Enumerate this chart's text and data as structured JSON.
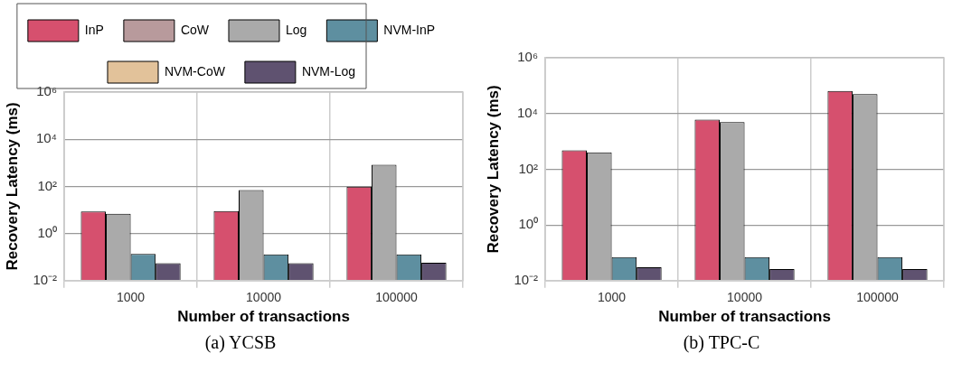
{
  "chart_data": [
    {
      "type": "bar",
      "annotations": [
        "(a) YCSB"
      ],
      "xlabel": "Number of transactions",
      "ylabel": "Recovery Latency (ms)",
      "categories": [
        "1000",
        "10000",
        "100000"
      ],
      "log": "y",
      "ylim": [
        0.01,
        1000000
      ],
      "yticks": [
        {
          "value": 0.01,
          "label": "10⁻²"
        },
        {
          "value": 1,
          "label": "10⁰"
        },
        {
          "value": 100,
          "label": "10²"
        },
        {
          "value": 10000,
          "label": "10⁴"
        },
        {
          "value": 1000000,
          "label": "10⁶"
        }
      ],
      "grid": true,
      "legend": "top",
      "series": [
        {
          "name": "InP",
          "color": "#d6506e",
          "values": [
            8.6,
            8.9,
            97
          ]
        },
        {
          "name": "CoW",
          "color": "#b89a9c",
          "values": [
            null,
            null,
            null
          ]
        },
        {
          "name": "Log",
          "color": "#aaaaaa",
          "values": [
            6.8,
            70,
            830
          ]
        },
        {
          "name": "NVM-InP",
          "color": "#5e8fa0",
          "values": [
            0.135,
            0.13,
            0.13
          ]
        },
        {
          "name": "NVM-CoW",
          "color": "#e2c29a",
          "values": [
            null,
            null,
            null
          ]
        },
        {
          "name": "NVM-Log",
          "color": "#5f5270",
          "values": [
            0.055,
            0.055,
            0.057
          ]
        }
      ]
    },
    {
      "type": "bar",
      "annotations": [
        "(b) TPC-C"
      ],
      "xlabel": "Number of transactions",
      "ylabel": "Recovery Latency (ms)",
      "categories": [
        "1000",
        "10000",
        "100000"
      ],
      "log": "y",
      "ylim": [
        0.01,
        1000000
      ],
      "yticks": [
        {
          "value": 0.01,
          "label": "10⁻²"
        },
        {
          "value": 1,
          "label": "10⁰"
        },
        {
          "value": 100,
          "label": "10²"
        },
        {
          "value": 10000,
          "label": "10⁴"
        },
        {
          "value": 1000000,
          "label": "10⁶"
        }
      ],
      "grid": true,
      "series": [
        {
          "color": "#d6506e",
          "values": [
            475,
            6000,
            64000
          ]
        },
        {
          "color": "#b89a9c",
          "values": [
            null,
            null,
            null
          ]
        },
        {
          "color": "#aaaaaa",
          "values": [
            400,
            4900,
            50000
          ]
        },
        {
          "color": "#5e8fa0",
          "values": [
            0.07,
            0.07,
            0.07
          ]
        },
        {
          "color": "#e2c29a",
          "values": [
            null,
            null,
            null
          ]
        },
        {
          "color": "#5f5270",
          "values": [
            0.03,
            0.026,
            0.026
          ]
        }
      ]
    }
  ]
}
